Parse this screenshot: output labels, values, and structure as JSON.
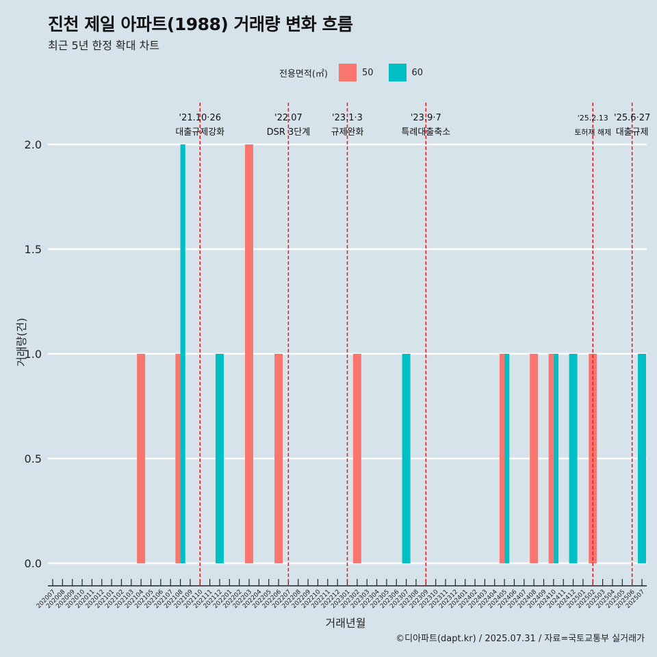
{
  "title": "진천 제일 아파트(1988) 거래량 변화 흐름",
  "subtitle": "최근 5년 한정 확대 차트",
  "caption": "©디아파트(dapt.kr) / 2025.07.31 / 자료=국토교통부 실거래가",
  "chart_data": {
    "type": "bar",
    "xlabel": "거래년월",
    "ylabel": "거래량(건)",
    "ylim": [
      0,
      2.0
    ],
    "yticks": [
      "0.0",
      "0.5",
      "1.0",
      "1.5",
      "2.0"
    ],
    "legend": {
      "title": "전용면적(㎡)",
      "position": "top",
      "entries": [
        {
          "name": "50",
          "color": "#f8766d"
        },
        {
          "name": "60",
          "color": "#00bfc4"
        }
      ]
    },
    "categories": [
      "202007",
      "202008",
      "202009",
      "202010",
      "202011",
      "202012",
      "202101",
      "202102",
      "202103",
      "202104",
      "202105",
      "202106",
      "202107",
      "202108",
      "202109",
      "202110",
      "202111",
      "202112",
      "202201",
      "202202",
      "202203",
      "202204",
      "202205",
      "202206",
      "202207",
      "202208",
      "202209",
      "202210",
      "202211",
      "202212",
      "202301",
      "202302",
      "202303",
      "202304",
      "202305",
      "202306",
      "202307",
      "202308",
      "202309",
      "202310",
      "202311",
      "202312",
      "202401",
      "202402",
      "202403",
      "202404",
      "202405",
      "202406",
      "202407",
      "202408",
      "202409",
      "202410",
      "202411",
      "202412",
      "202501",
      "202502",
      "202503",
      "202504",
      "202505",
      "202506",
      "202507"
    ],
    "bars": [
      {
        "month": "202104",
        "series": "50",
        "value": 1
      },
      {
        "month": "202108",
        "series": "50",
        "value": 1
      },
      {
        "month": "202108",
        "series": "60",
        "value": 2
      },
      {
        "month": "202112",
        "series": "60",
        "value": 1
      },
      {
        "month": "202203",
        "series": "50",
        "value": 2
      },
      {
        "month": "202206",
        "series": "50",
        "value": 1
      },
      {
        "month": "202302",
        "series": "50",
        "value": 1
      },
      {
        "month": "202307",
        "series": "60",
        "value": 1
      },
      {
        "month": "202405",
        "series": "50",
        "value": 1
      },
      {
        "month": "202405",
        "series": "60",
        "value": 1
      },
      {
        "month": "202408",
        "series": "50",
        "value": 1
      },
      {
        "month": "202410",
        "series": "50",
        "value": 1
      },
      {
        "month": "202410",
        "series": "60",
        "value": 1
      },
      {
        "month": "202412",
        "series": "60",
        "value": 1
      },
      {
        "month": "202502",
        "series": "50",
        "value": 1
      },
      {
        "month": "202507",
        "series": "60",
        "value": 1
      }
    ],
    "events": [
      {
        "date": "'21.10·26",
        "label": "대출규제강화",
        "month": "202110"
      },
      {
        "date": "'22.07",
        "label": "DSR 3단계",
        "month": "202207"
      },
      {
        "date": "'23.1·3",
        "label": "규제완화",
        "month": "202301"
      },
      {
        "date": "'23.9·7",
        "label": "특례대출축소",
        "month": "202309"
      },
      {
        "date": "'25.2.13",
        "label": "토허제 해제",
        "month": "202502"
      },
      {
        "date": "'25.6·27",
        "label": "대출규제",
        "month": "202506"
      }
    ]
  }
}
